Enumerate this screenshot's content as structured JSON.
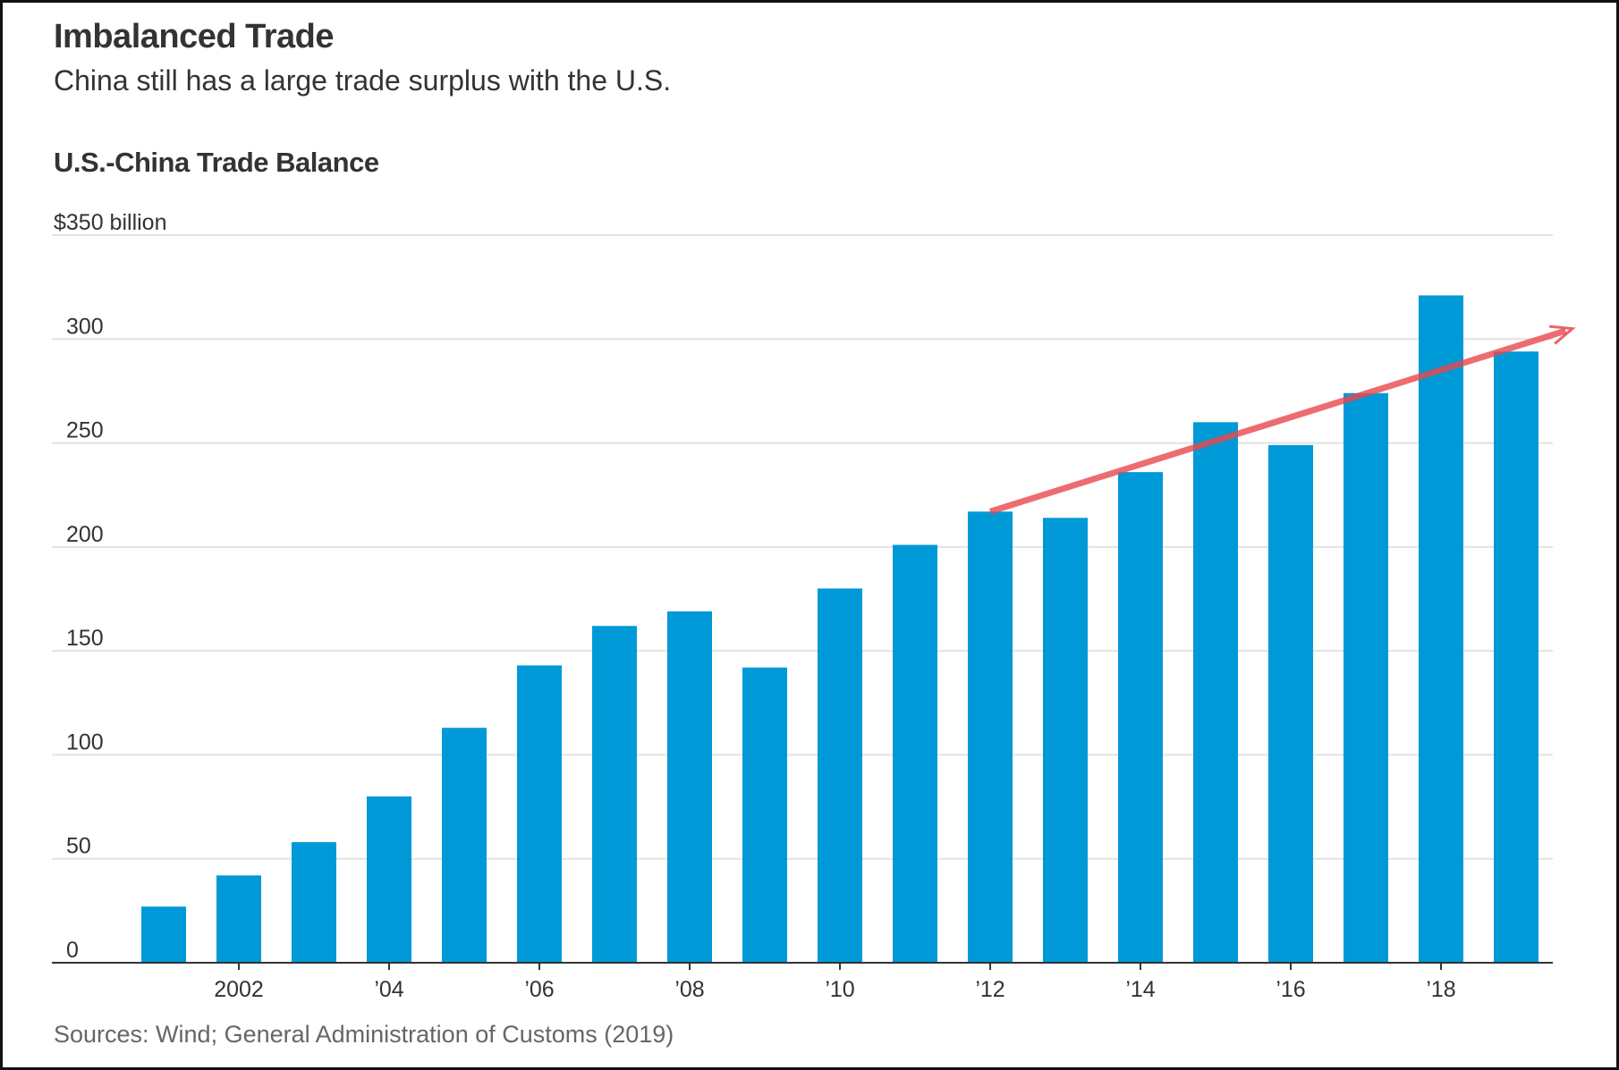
{
  "chart_data": {
    "type": "bar",
    "title": "Imbalanced Trade",
    "subtitle": "China still has a large trade surplus with the U.S.",
    "chart_title": "U.S.-China Trade Balance",
    "ylabel": "$350 billion",
    "source": "Sources: Wind; General Administration of Customs (2019)",
    "categories": [
      2001,
      2002,
      2003,
      2004,
      2005,
      2006,
      2007,
      2008,
      2009,
      2010,
      2011,
      2012,
      2013,
      2014,
      2015,
      2016,
      2017,
      2018,
      2019
    ],
    "values": [
      27,
      42,
      58,
      80,
      113,
      143,
      162,
      169,
      142,
      180,
      201,
      217,
      214,
      236,
      260,
      249,
      274,
      321,
      294
    ],
    "ylim": [
      0,
      350
    ],
    "yticks": [
      0,
      50,
      100,
      150,
      200,
      250,
      300
    ],
    "ytick_labels": [
      "0",
      "50",
      "100",
      "150",
      "200",
      "250",
      "300"
    ],
    "xtick_labels": [
      {
        "year": 2002,
        "label": "2002"
      },
      {
        "year": 2004,
        "label": "’04"
      },
      {
        "year": 2006,
        "label": "’06"
      },
      {
        "year": 2008,
        "label": "’08"
      },
      {
        "year": 2010,
        "label": "’10"
      },
      {
        "year": 2012,
        "label": "’12"
      },
      {
        "year": 2014,
        "label": "’14"
      },
      {
        "year": 2016,
        "label": "’16"
      },
      {
        "year": 2018,
        "label": "’18"
      }
    ],
    "grid": true,
    "colors": {
      "bar": "#0099d8",
      "annotation_arrow": "#e8474c",
      "grid": "#e2e2e2",
      "axis": "#333333"
    },
    "annotation": {
      "type": "trend-arrow",
      "from": {
        "year": 2012,
        "value": 217
      },
      "to": {
        "year": 2019.75,
        "value": 305
      }
    }
  }
}
